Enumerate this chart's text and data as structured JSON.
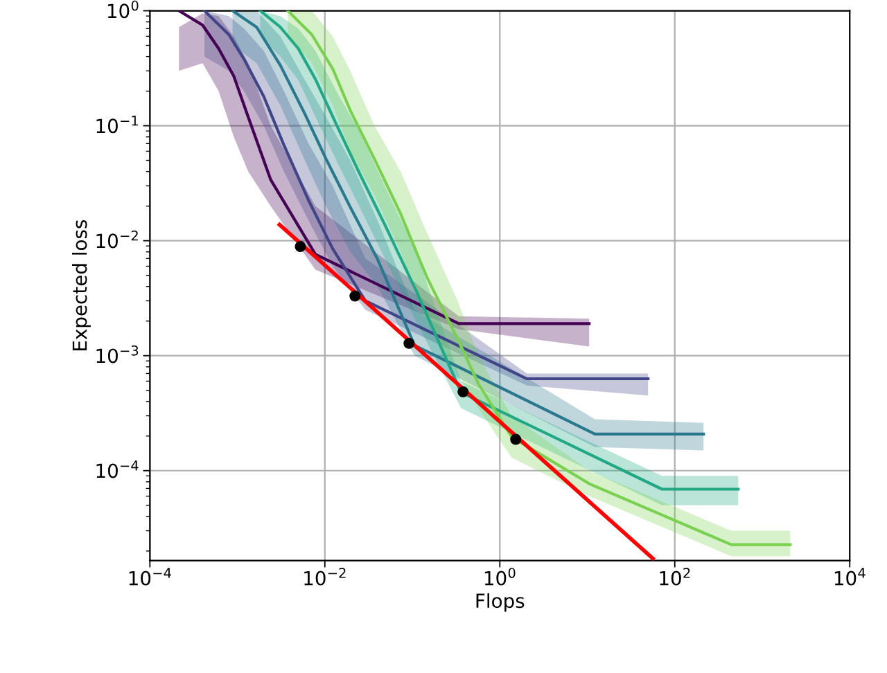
{
  "chart_data": {
    "type": "line",
    "xlabel": "Flops",
    "ylabel": "Expected loss",
    "log": "xy",
    "grid": true,
    "line_style": "solid",
    "xlim": [
      0.0001,
      10000
    ],
    "ylim": [
      1.65e-05,
      1
    ],
    "xticks": [
      {
        "value": 0.0001,
        "label": "10$^{−4}$"
      },
      {
        "value": 0.01,
        "label": "10$^{−2}$"
      },
      {
        "value": 1,
        "label": "10$^{0}$"
      },
      {
        "value": 100,
        "label": "10$^{2}$"
      },
      {
        "value": 10000,
        "label": "10$^{4}$"
      }
    ],
    "yticks": [
      {
        "value": 0.0001,
        "label": "10$^{−4}$"
      },
      {
        "value": 0.001,
        "label": "10$^{−3}$"
      },
      {
        "value": 0.01,
        "label": "10$^{−2}$"
      },
      {
        "value": 0.1,
        "label": "10$^{−1}$"
      },
      {
        "value": 1,
        "label": "10$^{0}$"
      }
    ],
    "series": [
      {
        "color": "#440154",
        "x": [
          0.000215,
          0.0004,
          0.00061,
          0.00091,
          0.00133,
          0.0024,
          0.0078,
          0.34,
          10.5
        ],
        "values": [
          1.0,
          0.75,
          0.47,
          0.27,
          0.119,
          0.034,
          0.0076,
          0.0019,
          0.0019
        ],
        "upper": [
          0.72,
          0.95,
          0.9,
          0.6,
          0.35,
          0.1,
          0.02,
          0.0022,
          0.0021
        ],
        "lower": [
          0.3,
          0.35,
          0.2,
          0.08,
          0.04,
          0.02,
          0.0056,
          0.0017,
          0.0012
        ]
      },
      {
        "color": "#414487",
        "x": [
          0.00042,
          0.0008,
          0.00119,
          0.002,
          0.0034,
          0.0065,
          0.0123,
          0.029,
          2.04,
          49.5
        ],
        "values": [
          1.0,
          0.62,
          0.38,
          0.18,
          0.068,
          0.0225,
          0.0085,
          0.003,
          0.00063,
          0.00063
        ],
        "upper": [
          1.0,
          0.9,
          0.7,
          0.45,
          0.2,
          0.07,
          0.03,
          0.007,
          0.0007,
          0.0007
        ],
        "lower": [
          0.4,
          0.3,
          0.2,
          0.1,
          0.04,
          0.015,
          0.006,
          0.0025,
          0.00055,
          0.00045
        ]
      },
      {
        "color": "#2a788e",
        "x": [
          0.00088,
          0.00166,
          0.0031,
          0.0059,
          0.0103,
          0.0195,
          0.04,
          0.106,
          12.2,
          213
        ],
        "values": [
          1.0,
          0.72,
          0.335,
          0.127,
          0.0516,
          0.0196,
          0.0069,
          0.00123,
          0.000208,
          0.000208
        ],
        "upper": [
          1.0,
          1.0,
          0.6,
          0.25,
          0.12,
          0.05,
          0.015,
          0.0025,
          0.00028,
          0.00026
        ],
        "lower": [
          0.5,
          0.35,
          0.15,
          0.05,
          0.02,
          0.008,
          0.004,
          0.001,
          0.00016,
          0.00015
        ]
      },
      {
        "color": "#22a884",
        "x": [
          0.00182,
          0.0031,
          0.00496,
          0.0078,
          0.0135,
          0.0247,
          0.0484,
          0.11,
          0.36,
          71.3,
          531
        ],
        "values": [
          1.0,
          0.72,
          0.47,
          0.254,
          0.103,
          0.039,
          0.0138,
          0.0037,
          0.00048,
          6.9e-05,
          6.9e-05
        ],
        "upper": [
          1.0,
          0.9,
          0.7,
          0.45,
          0.2,
          0.09,
          0.03,
          0.008,
          0.0006,
          9e-05,
          9e-05
        ],
        "lower": [
          0.6,
          0.4,
          0.25,
          0.12,
          0.05,
          0.02,
          0.007,
          0.002,
          0.00035,
          5e-05,
          5e-05
        ]
      },
      {
        "color": "#7ad151",
        "x": [
          0.00377,
          0.0071,
          0.0123,
          0.0195,
          0.0368,
          0.0736,
          0.145,
          0.329,
          0.568,
          1.36,
          10.5,
          443,
          2085
        ],
        "values": [
          1.0,
          0.62,
          0.313,
          0.136,
          0.0516,
          0.0171,
          0.0049,
          0.0014,
          0.00057,
          0.000197,
          7.7e-05,
          2.27e-05,
          2.27e-05
        ],
        "upper": [
          1.0,
          1.0,
          0.6,
          0.3,
          0.1,
          0.04,
          0.012,
          0.003,
          0.001,
          0.0003,
          0.0001,
          3e-05,
          3e-05
        ],
        "lower": [
          0.6,
          0.35,
          0.15,
          0.06,
          0.025,
          0.008,
          0.002,
          0.0007,
          0.00035,
          0.00013,
          6e-05,
          1.8e-05,
          1.8e-05
        ]
      },
      {
        "type": "line",
        "color": "#ff0000",
        "x": [
          0.00303,
          56.2
        ],
        "values": [
          0.0138,
          1.72e-05
        ]
      },
      {
        "type": "scatter",
        "marker": "circle",
        "color": "#000000",
        "x": [
          0.00524,
          0.0221,
          0.0916,
          0.38,
          1.52
        ],
        "values": [
          0.0089,
          0.0033,
          0.00128,
          0.000485,
          0.000187
        ]
      }
    ]
  }
}
